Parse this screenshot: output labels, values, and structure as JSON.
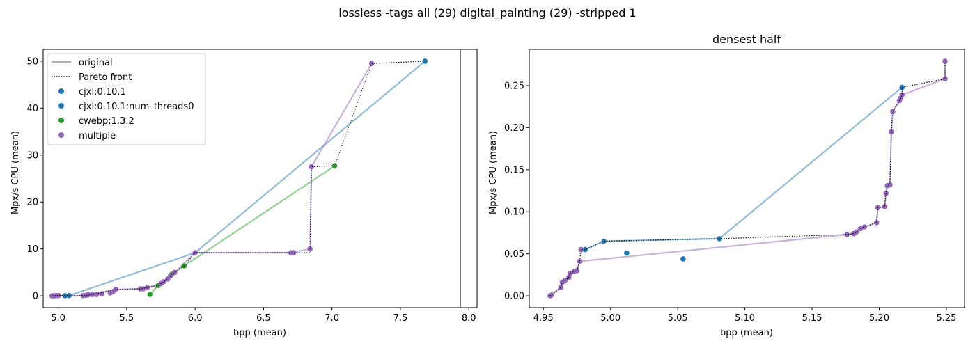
{
  "suptitle": "lossless -tags all (29) digital_painting (29) -stripped 1",
  "legend_labels": {
    "original": "original",
    "pareto": "Pareto front",
    "cjxl": "cjxl:0.10.1",
    "cjxl_threads": "cjxl:0.10.1:num_threads0",
    "cwebp": "cwebp:1.3.2",
    "multiple": "multiple"
  },
  "colors": {
    "cjxl": "#1f77b4",
    "cwebp": "#2ca02c",
    "multiple": "#9467bd",
    "original": "#808080",
    "pareto": "#000000"
  },
  "chart_data": [
    {
      "type": "scatter",
      "title": "",
      "xlabel": "bpp (mean)",
      "ylabel": "Mpx/s CPU (mean)",
      "xlim": [
        4.89,
        8.06
      ],
      "ylim": [
        -2.5,
        52.5
      ],
      "xticks": [
        5.0,
        5.5,
        6.0,
        6.5,
        7.0,
        7.5,
        8.0
      ],
      "xtick_labels": [
        "5.0",
        "5.5",
        "6.0",
        "6.5",
        "7.0",
        "7.5",
        "8.0"
      ],
      "yticks": [
        0,
        10,
        20,
        30,
        40,
        50
      ],
      "ytick_labels": [
        "0",
        "10",
        "20",
        "30",
        "40",
        "50"
      ],
      "legend_placement": "upper-left",
      "original_bpp": 7.94,
      "series": [
        {
          "key": "cjxl",
          "name": "cjxl:0.10.1",
          "line": [
            [
              4.955,
              0.0
            ],
            [
              5.0,
              0.06
            ],
            [
              5.08,
              0.07
            ],
            [
              6.0,
              9.2
            ],
            [
              7.68,
              50.0
            ]
          ],
          "points": [
            [
              5.0,
              0.06
            ],
            [
              5.05,
              0.04
            ],
            [
              5.08,
              0.07
            ],
            [
              5.28,
              0.3
            ],
            [
              7.68,
              50.0
            ]
          ]
        },
        {
          "key": "cwebp",
          "name": "cwebp:1.3.2",
          "line": [
            [
              5.67,
              0.3
            ],
            [
              5.73,
              2.2
            ],
            [
              5.83,
              4.6
            ],
            [
              5.92,
              6.4
            ],
            [
              7.02,
              27.7
            ]
          ],
          "points": [
            [
              5.67,
              0.3
            ],
            [
              5.73,
              2.2
            ],
            [
              5.83,
              4.6
            ],
            [
              5.92,
              6.4
            ],
            [
              7.02,
              27.7
            ]
          ]
        },
        {
          "key": "multiple",
          "name": "multiple",
          "line": [
            [
              4.955,
              0.0
            ],
            [
              4.98,
              0.04
            ],
            [
              5.18,
              0.07
            ],
            [
              5.21,
              0.2
            ],
            [
              5.25,
              0.26
            ],
            [
              5.42,
              1.4
            ],
            [
              5.6,
              1.5
            ],
            [
              5.65,
              1.8
            ],
            [
              5.75,
              2.6
            ],
            [
              5.8,
              3.6
            ],
            [
              5.85,
              5.0
            ],
            [
              6.0,
              9.2
            ],
            [
              6.7,
              9.2
            ],
            [
              6.84,
              10.0
            ],
            [
              6.85,
              27.5
            ],
            [
              7.29,
              49.5
            ]
          ],
          "points": [
            [
              4.955,
              0.0
            ],
            [
              4.96,
              0.01
            ],
            [
              4.97,
              0.02
            ],
            [
              4.98,
              0.04
            ],
            [
              5.0,
              0.06
            ],
            [
              5.18,
              0.07
            ],
            [
              5.2,
              0.1
            ],
            [
              5.21,
              0.19
            ],
            [
              5.22,
              0.24
            ],
            [
              5.25,
              0.28
            ],
            [
              5.28,
              0.3
            ],
            [
              5.32,
              0.45
            ],
            [
              5.38,
              0.6
            ],
            [
              5.4,
              0.9
            ],
            [
              5.42,
              1.4
            ],
            [
              5.6,
              1.5
            ],
            [
              5.62,
              1.5
            ],
            [
              5.65,
              1.8
            ],
            [
              5.75,
              2.6
            ],
            [
              5.77,
              3.0
            ],
            [
              5.8,
              3.6
            ],
            [
              5.82,
              4.3
            ],
            [
              5.85,
              5.0
            ],
            [
              6.0,
              9.2
            ],
            [
              6.7,
              9.2
            ],
            [
              6.72,
              9.2
            ],
            [
              6.84,
              10.0
            ],
            [
              6.85,
              27.5
            ],
            [
              7.29,
              49.5
            ]
          ]
        }
      ],
      "pareto": [
        [
          4.955,
          0.0
        ],
        [
          5.0,
          0.06
        ],
        [
          5.08,
          0.07
        ],
        [
          5.2,
          0.1
        ],
        [
          5.25,
          0.26
        ],
        [
          5.42,
          1.4
        ],
        [
          5.6,
          1.5
        ],
        [
          5.65,
          1.8
        ],
        [
          5.73,
          2.2
        ],
        [
          5.75,
          2.6
        ],
        [
          5.8,
          3.6
        ],
        [
          5.83,
          4.6
        ],
        [
          5.92,
          6.4
        ],
        [
          6.0,
          9.2
        ],
        [
          6.84,
          9.2
        ],
        [
          6.84,
          10.0
        ],
        [
          6.85,
          27.5
        ],
        [
          7.02,
          27.7
        ],
        [
          7.29,
          49.5
        ],
        [
          7.68,
          50.0
        ]
      ]
    },
    {
      "type": "scatter",
      "title": "densest half",
      "xlabel": "bpp (mean)",
      "ylabel": "Mpx/s CPU (mean)",
      "xlim": [
        4.9395,
        5.2635
      ],
      "ylim": [
        -0.014,
        0.293
      ],
      "xticks": [
        4.95,
        5.0,
        5.05,
        5.1,
        5.15,
        5.2,
        5.25
      ],
      "xtick_labels": [
        "4.95",
        "5.00",
        "5.05",
        "5.10",
        "5.15",
        "5.20",
        "5.25"
      ],
      "yticks": [
        0.0,
        0.05,
        0.1,
        0.15,
        0.2,
        0.25
      ],
      "ytick_labels": [
        "0.00",
        "0.05",
        "0.10",
        "0.15",
        "0.20",
        "0.25"
      ],
      "series": [
        {
          "key": "cjxl",
          "name": "cjxl:0.10.1",
          "line": [
            [
              4.978,
              0.055
            ],
            [
              4.981,
              0.055
            ],
            [
              4.995,
              0.065
            ],
            [
              5.081,
              0.068
            ],
            [
              5.217,
              0.248
            ]
          ],
          "points": [
            [
              4.978,
              0.055
            ],
            [
              4.981,
              0.055
            ],
            [
              4.995,
              0.065
            ],
            [
              5.012,
              0.051
            ],
            [
              5.054,
              0.044
            ],
            [
              5.081,
              0.068
            ],
            [
              5.217,
              0.248
            ]
          ]
        },
        {
          "key": "multiple",
          "name": "multiple",
          "line": [
            [
              4.955,
              0.0
            ],
            [
              4.956,
              0.001
            ],
            [
              4.963,
              0.01
            ],
            [
              4.964,
              0.016
            ],
            [
              4.966,
              0.018
            ],
            [
              4.969,
              0.022
            ],
            [
              4.97,
              0.027
            ],
            [
              4.973,
              0.029
            ],
            [
              4.975,
              0.03
            ],
            [
              4.977,
              0.041
            ],
            [
              5.176,
              0.073
            ],
            [
              5.181,
              0.074
            ],
            [
              5.183,
              0.076
            ],
            [
              5.186,
              0.08
            ],
            [
              5.189,
              0.082
            ],
            [
              5.198,
              0.087
            ],
            [
              5.199,
              0.105
            ],
            [
              5.204,
              0.106
            ],
            [
              5.205,
              0.122
            ],
            [
              5.206,
              0.131
            ],
            [
              5.208,
              0.132
            ],
            [
              5.209,
              0.195
            ],
            [
              5.21,
              0.219
            ],
            [
              5.215,
              0.232
            ],
            [
              5.216,
              0.235
            ],
            [
              5.217,
              0.239
            ],
            [
              5.249,
              0.258
            ],
            [
              5.249,
              0.279
            ]
          ],
          "points": [
            [
              4.955,
              0.0
            ],
            [
              4.956,
              0.001
            ],
            [
              4.963,
              0.01
            ],
            [
              4.964,
              0.016
            ],
            [
              4.966,
              0.018
            ],
            [
              4.969,
              0.022
            ],
            [
              4.97,
              0.027
            ],
            [
              4.973,
              0.029
            ],
            [
              4.975,
              0.03
            ],
            [
              4.977,
              0.041
            ],
            [
              4.978,
              0.055
            ],
            [
              5.176,
              0.073
            ],
            [
              5.181,
              0.074
            ],
            [
              5.183,
              0.076
            ],
            [
              5.186,
              0.08
            ],
            [
              5.189,
              0.082
            ],
            [
              5.198,
              0.087
            ],
            [
              5.199,
              0.105
            ],
            [
              5.204,
              0.106
            ],
            [
              5.205,
              0.122
            ],
            [
              5.206,
              0.131
            ],
            [
              5.208,
              0.132
            ],
            [
              5.209,
              0.195
            ],
            [
              5.21,
              0.219
            ],
            [
              5.215,
              0.232
            ],
            [
              5.216,
              0.235
            ],
            [
              5.217,
              0.239
            ],
            [
              5.249,
              0.258
            ],
            [
              5.249,
              0.279
            ]
          ]
        }
      ],
      "pareto": [
        [
          4.955,
          0.0
        ],
        [
          4.963,
          0.01
        ],
        [
          4.964,
          0.016
        ],
        [
          4.966,
          0.018
        ],
        [
          4.969,
          0.022
        ],
        [
          4.97,
          0.027
        ],
        [
          4.973,
          0.029
        ],
        [
          4.975,
          0.03
        ],
        [
          4.977,
          0.041
        ],
        [
          4.978,
          0.055
        ],
        [
          4.981,
          0.055
        ],
        [
          4.995,
          0.065
        ],
        [
          5.081,
          0.068
        ],
        [
          5.176,
          0.073
        ],
        [
          5.181,
          0.074
        ],
        [
          5.183,
          0.076
        ],
        [
          5.186,
          0.08
        ],
        [
          5.189,
          0.082
        ],
        [
          5.198,
          0.087
        ],
        [
          5.199,
          0.105
        ],
        [
          5.204,
          0.106
        ],
        [
          5.205,
          0.122
        ],
        [
          5.206,
          0.131
        ],
        [
          5.208,
          0.132
        ],
        [
          5.209,
          0.195
        ],
        [
          5.21,
          0.219
        ],
        [
          5.215,
          0.232
        ],
        [
          5.216,
          0.235
        ],
        [
          5.217,
          0.239
        ],
        [
          5.217,
          0.248
        ],
        [
          5.249,
          0.258
        ],
        [
          5.249,
          0.279
        ]
      ]
    }
  ]
}
